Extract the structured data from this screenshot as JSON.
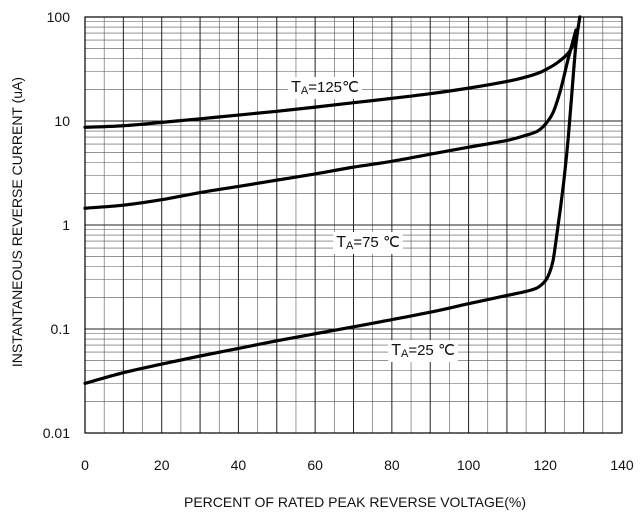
{
  "chart_data": {
    "type": "line",
    "title": "",
    "xlabel": "PERCENT OF RATED PEAK REVERSE VOLTAGE(%)",
    "ylabel": "INSTANTANEOUS REVERSE CURRENT (uA)",
    "x_ticks": [
      "0",
      "20",
      "40",
      "60",
      "80",
      "100",
      "120",
      "140"
    ],
    "y_ticks": [
      "0.01",
      "0.1",
      "1",
      "10",
      "100"
    ],
    "xlim": [
      0,
      140
    ],
    "ylim": [
      0.01,
      100
    ],
    "y_scale": "log",
    "grid": true,
    "series": [
      {
        "name": "TA=125℃",
        "label_main": "T",
        "label_sub": "A",
        "label_rest": "=125℃",
        "x": [
          0,
          10,
          20,
          30,
          40,
          50,
          60,
          70,
          80,
          90,
          100,
          110,
          115,
          118,
          120,
          123,
          126,
          128
        ],
        "y": [
          8.7,
          9.0,
          9.7,
          10.5,
          11.4,
          12.4,
          13.6,
          15.0,
          16.5,
          18.3,
          20.7,
          24.0,
          26.5,
          28.7,
          31.0,
          36.0,
          45.0,
          60.0
        ]
      },
      {
        "name": "TA=75 ℃",
        "label_main": "T",
        "label_sub": "A",
        "label_rest": "=75 ℃",
        "x": [
          0,
          10,
          20,
          30,
          40,
          50,
          60,
          70,
          80,
          90,
          100,
          110,
          115,
          118,
          120,
          122,
          124,
          126,
          128
        ],
        "y": [
          1.45,
          1.55,
          1.75,
          2.05,
          2.35,
          2.7,
          3.1,
          3.6,
          4.1,
          4.8,
          5.6,
          6.5,
          7.3,
          8.0,
          9.3,
          12.0,
          20.0,
          40.0,
          75.0
        ]
      },
      {
        "name": "TA=25 ℃",
        "label_main": "T",
        "label_sub": "A",
        "label_rest": "=25 ℃",
        "x": [
          0,
          10,
          20,
          30,
          40,
          50,
          60,
          70,
          80,
          90,
          100,
          110,
          115,
          118,
          120,
          121,
          122,
          123,
          124,
          125,
          126,
          127,
          128,
          129
        ],
        "y": [
          0.03,
          0.038,
          0.046,
          0.055,
          0.065,
          0.077,
          0.09,
          0.105,
          0.123,
          0.145,
          0.175,
          0.21,
          0.23,
          0.25,
          0.29,
          0.34,
          0.45,
          0.8,
          1.5,
          3.0,
          7.0,
          20.0,
          55.0,
          100.0
        ]
      }
    ]
  }
}
